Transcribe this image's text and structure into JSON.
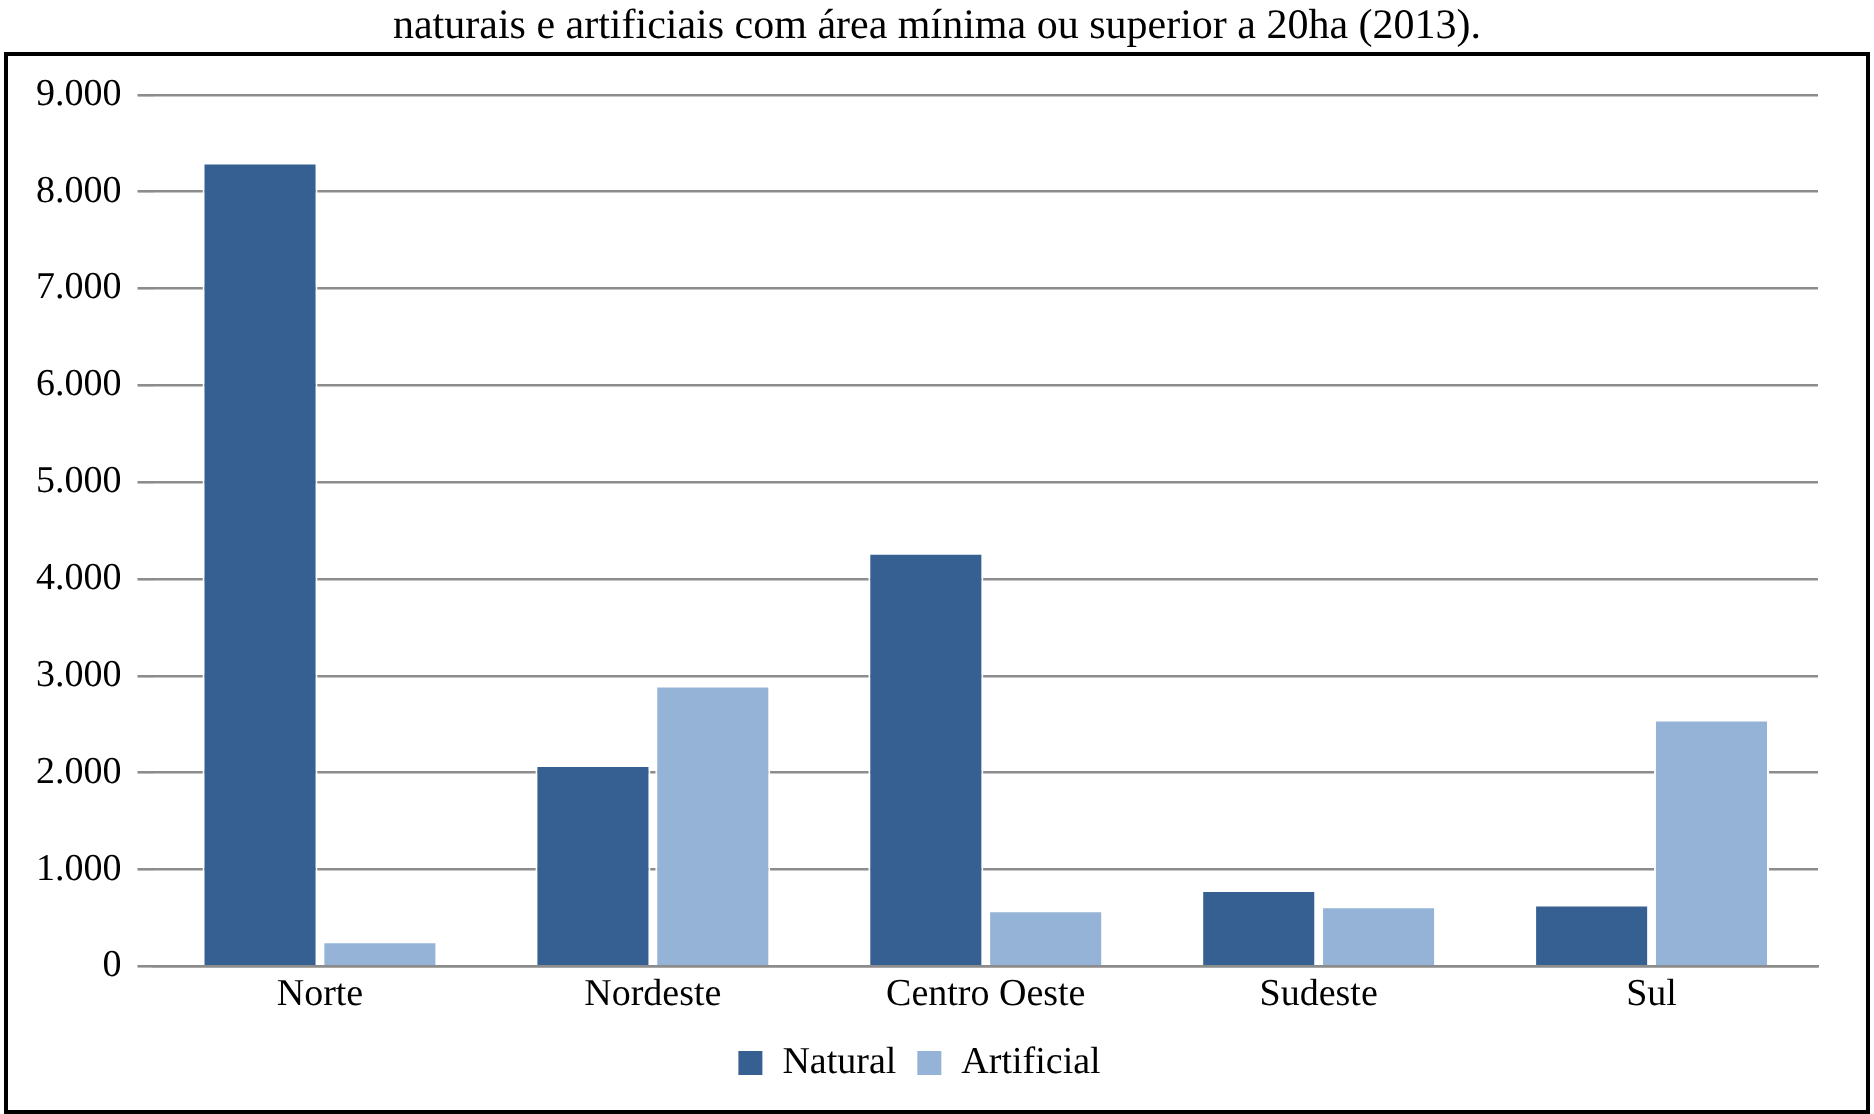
{
  "chart_data": {
    "type": "bar",
    "title": "naturais e artificiais com área mínima ou superior a 20ha (2013).",
    "categories": [
      "Norte",
      "Nordeste",
      "Centro Oeste",
      "Sudeste",
      "Sul"
    ],
    "series": [
      {
        "name": "Natural",
        "color": "#366092",
        "values": [
          8300,
          2080,
          4270,
          790,
          640
        ]
      },
      {
        "name": "Artificial",
        "color": "#95b3d7",
        "values": [
          260,
          2900,
          580,
          620,
          2550
        ]
      }
    ],
    "ylim": [
      0,
      9000
    ],
    "yticks": [
      {
        "value": 0,
        "label": "0"
      },
      {
        "value": 1000,
        "label": "1.000"
      },
      {
        "value": 2000,
        "label": "2.000"
      },
      {
        "value": 3000,
        "label": "3.000"
      },
      {
        "value": 4000,
        "label": "4.000"
      },
      {
        "value": 5000,
        "label": "5.000"
      },
      {
        "value": 6000,
        "label": "6.000"
      },
      {
        "value": 7000,
        "label": "7.000"
      },
      {
        "value": 8000,
        "label": "8.000"
      },
      {
        "value": 9000,
        "label": "9.000"
      }
    ],
    "grid": "y",
    "legend": "bottom"
  }
}
